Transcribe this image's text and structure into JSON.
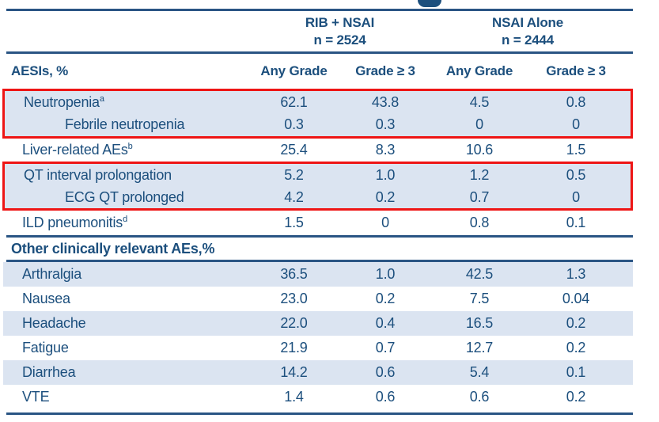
{
  "table": {
    "colors": {
      "navy": "#1c4f7d",
      "rule": "#2a5584",
      "band": "#dbe4f1",
      "highlight_red": "#ee1515"
    },
    "group_headers": [
      {
        "name": "RIB + NSAI",
        "n": "n = 2524"
      },
      {
        "name": "NSAI Alone",
        "n": "n = 2444"
      }
    ],
    "row_header_label": "AESIs, %",
    "column_headers": [
      "Any Grade",
      "Grade ≥ 3",
      "Any Grade",
      "Grade ≥ 3"
    ],
    "aesi_rows": [
      {
        "label": "Neutropenia",
        "sup": "a",
        "values": [
          "62.1",
          "43.8",
          "4.5",
          "0.8"
        ]
      },
      {
        "label": "Febrile neutropenia",
        "values": [
          "0.3",
          "0.3",
          "0",
          "0"
        ]
      },
      {
        "label": "Liver-related AEs",
        "sup": "b",
        "values": [
          "25.4",
          "8.3",
          "10.6",
          "1.5"
        ]
      },
      {
        "label": "QT interval prolongation",
        "values": [
          "5.2",
          "1.0",
          "1.2",
          "0.5"
        ]
      },
      {
        "label": "ECG QT prolonged",
        "values": [
          "4.2",
          "0.2",
          "0.7",
          "0"
        ]
      },
      {
        "label": "ILD pneumonitis",
        "sup": "d",
        "values": [
          "1.5",
          "0",
          "0.8",
          "0.1"
        ]
      }
    ],
    "other_section_label": "Other clinically relevant AEs,%",
    "other_rows": [
      {
        "label": "Arthralgia",
        "values": [
          "36.5",
          "1.0",
          "42.5",
          "1.3"
        ]
      },
      {
        "label": "Nausea",
        "values": [
          "23.0",
          "0.2",
          "7.5",
          "0.04"
        ]
      },
      {
        "label": "Headache",
        "values": [
          "22.0",
          "0.4",
          "16.5",
          "0.2"
        ]
      },
      {
        "label": "Fatigue",
        "values": [
          "21.9",
          "0.7",
          "12.7",
          "0.2"
        ]
      },
      {
        "label": "Diarrhea",
        "values": [
          "14.2",
          "0.6",
          "5.4",
          "0.1"
        ]
      },
      {
        "label": "VTE",
        "values": [
          "1.4",
          "0.6",
          "0.6",
          "0.2"
        ]
      }
    ]
  },
  "chart_data": {
    "type": "table",
    "title": "",
    "column_groups": [
      {
        "label": "RIB + NSAI",
        "n": 2524
      },
      {
        "label": "NSAI Alone",
        "n": 2444
      }
    ],
    "columns": [
      "AESIs, %",
      "RIB + NSAI Any Grade",
      "RIB + NSAI Grade ≥ 3",
      "NSAI Alone Any Grade",
      "NSAI Alone Grade ≥ 3"
    ],
    "rows": [
      [
        "Neutropenia (a)",
        62.1,
        43.8,
        4.5,
        0.8
      ],
      [
        "Febrile neutropenia",
        0.3,
        0.3,
        0,
        0
      ],
      [
        "Liver-related AEs (b)",
        25.4,
        8.3,
        10.6,
        1.5
      ],
      [
        "QT interval prolongation",
        5.2,
        1.0,
        1.2,
        0.5
      ],
      [
        "ECG QT prolonged",
        4.2,
        0.2,
        0.7,
        0
      ],
      [
        "ILD pneumonitis (d)",
        1.5,
        0,
        0.8,
        0.1
      ],
      [
        "Arthralgia",
        36.5,
        1.0,
        42.5,
        1.3
      ],
      [
        "Nausea",
        23.0,
        0.2,
        7.5,
        0.04
      ],
      [
        "Headache",
        22.0,
        0.4,
        16.5,
        0.2
      ],
      [
        "Fatigue",
        21.9,
        0.7,
        12.7,
        0.2
      ],
      [
        "Diarrhea",
        14.2,
        0.6,
        5.4,
        0.1
      ],
      [
        "VTE",
        1.4,
        0.6,
        0.6,
        0.2
      ]
    ],
    "layout": {
      "highlighted_row_groups": [
        [
          "Neutropenia (a)",
          "Febrile neutropenia"
        ],
        [
          "QT interval prolongation",
          "ECG QT prolonged"
        ]
      ],
      "highlight_color": "#ee1515"
    }
  }
}
